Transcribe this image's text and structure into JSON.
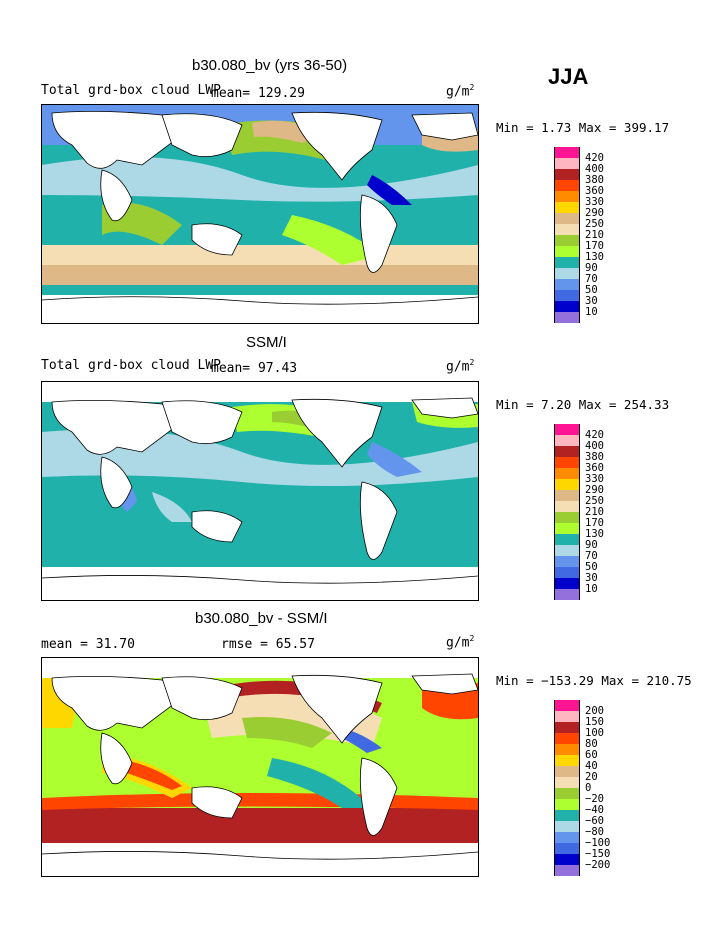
{
  "season": "JJA",
  "panels": [
    {
      "title": "b30.080_bv (yrs 36-50)",
      "left_label": "Total grd-box cloud LWP",
      "mean_label": "mean=",
      "mean_value": "129.29",
      "units": "g/m",
      "units_sup": "2",
      "minmax": "Min =    1.73 Max = 399.17",
      "colorbar": [
        "420",
        "400",
        "380",
        "360",
        "330",
        "290",
        "250",
        "210",
        "170",
        "130",
        "90",
        "70",
        "50",
        "30",
        "10"
      ]
    },
    {
      "title": "SSM/I",
      "left_label": "Total grd-box cloud LWP",
      "mean_label": "mean=",
      "mean_value": "97.43",
      "units": "g/m",
      "units_sup": "2",
      "minmax": "Min =    7.20 Max = 254.33",
      "colorbar": [
        "420",
        "400",
        "380",
        "360",
        "330",
        "290",
        "250",
        "210",
        "170",
        "130",
        "90",
        "70",
        "50",
        "30",
        "10"
      ]
    },
    {
      "title": "b30.080_bv - SSM/I",
      "left_label": "mean =   31.70",
      "rmse_label": "rmse =   65.57",
      "units": "g/m",
      "units_sup": "2",
      "minmax": "Min = −153.29 Max = 210.75",
      "colorbar": [
        "200",
        "150",
        "100",
        "80",
        "60",
        "40",
        "20",
        "0",
        "−20",
        "−40",
        "−60",
        "−80",
        "−100",
        "−150",
        "−200"
      ]
    }
  ],
  "colors": {
    "abs_scale": [
      "#ff1493",
      "#ffb6c1",
      "#b22222",
      "#ff4500",
      "#ff8c00",
      "#ffd700",
      "#deb887",
      "#f5deb3",
      "#9acd32",
      "#adff2f",
      "#20b2aa",
      "#add8e6",
      "#6495ed",
      "#4169e1",
      "#0000cd",
      "#9370db"
    ],
    "diff_scale": [
      "#ff1493",
      "#ffb6c1",
      "#b22222",
      "#ff4500",
      "#ff8c00",
      "#ffd700",
      "#deb887",
      "#f5deb3",
      "#9acd32",
      "#adff2f",
      "#20b2aa",
      "#add8e6",
      "#6495ed",
      "#4169e1",
      "#0000cd",
      "#9370db"
    ]
  }
}
